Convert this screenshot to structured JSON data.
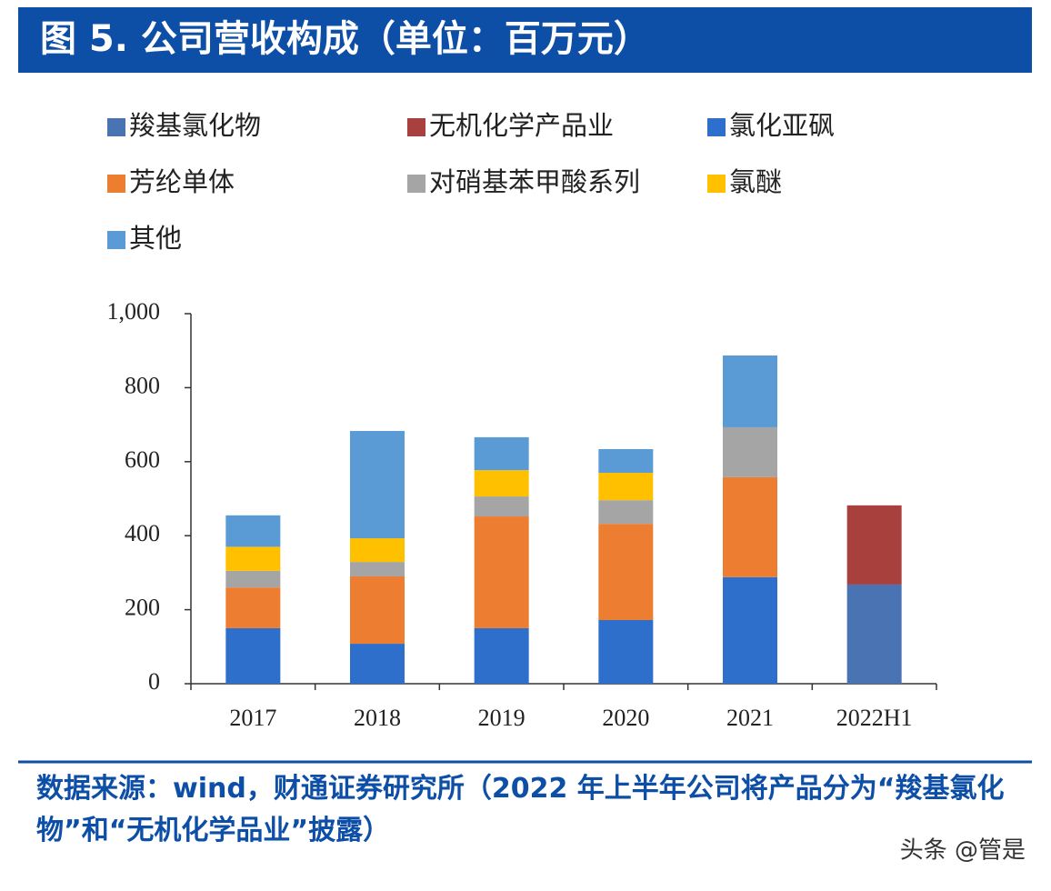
{
  "chart_data": {
    "type": "stacked-bar",
    "title": "图 5. 公司营收构成（单位：百万元）",
    "categories": [
      "2017",
      "2018",
      "2019",
      "2020",
      "2021",
      "2022H1"
    ],
    "series": [
      {
        "name": "羧基氯化物",
        "color": "#4a73b3",
        "values": [
          null,
          null,
          null,
          null,
          null,
          268
        ]
      },
      {
        "name": "无机化学产品业",
        "color": "#a8403d",
        "values": [
          null,
          null,
          null,
          null,
          null,
          214
        ]
      },
      {
        "name": "氯化亚砜",
        "color": "#2f6fcc",
        "values": [
          150,
          108,
          150,
          172,
          288,
          null
        ]
      },
      {
        "name": "芳纶单体",
        "color": "#ed7d31",
        "values": [
          110,
          182,
          302,
          260,
          270,
          null
        ]
      },
      {
        "name": "对硝基苯甲酸系列",
        "color": "#a5a5a5",
        "values": [
          45,
          39,
          54,
          64,
          135,
          null
        ]
      },
      {
        "name": "氯醚",
        "color": "#ffc000",
        "values": [
          65,
          64,
          71,
          74,
          null,
          null
        ]
      },
      {
        "name": "其他",
        "color": "#5b9bd5",
        "values": [
          85,
          290,
          89,
          64,
          194,
          null
        ]
      }
    ],
    "ylim": [
      0,
      1000
    ],
    "yticks": [
      0,
      200,
      400,
      600,
      800,
      {
        "value": 1000,
        "label": "1,000"
      }
    ],
    "source": "数据来源：wind，财通证券研究所（2022 年上半年公司将产品分为“羧基氯化物”和“无机化学品业”披露）",
    "watermark": "头条 @管是"
  }
}
